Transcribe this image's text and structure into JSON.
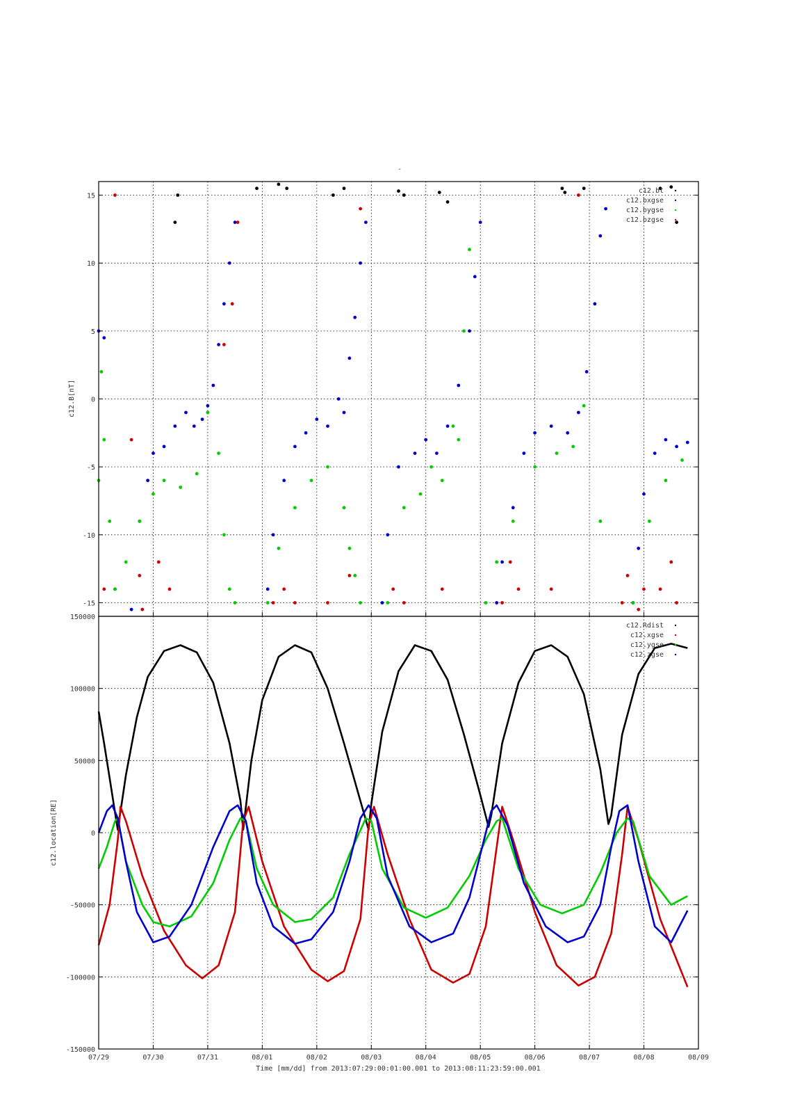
{
  "figure": {
    "top_title": "-",
    "x_axis_title": "Time [mm/dd]  from 2013:07:29:00:01:00.001  to  2013:08:11:23:59:00.001",
    "x_ticks": [
      "07/29",
      "07/30",
      "07/31",
      "08/01",
      "08/02",
      "08/03",
      "08/04",
      "08/05",
      "08/06",
      "08/07",
      "08/08",
      "08/09"
    ]
  },
  "chart_data": [
    {
      "type": "scatter",
      "ylabel": "c12.B[nT]",
      "xlabel": "",
      "x_unit": "days since 07/29",
      "xlim": [
        0,
        11
      ],
      "ylim": [
        -16,
        16
      ],
      "y_ticks": [
        "-15",
        "-10",
        "-5",
        "0",
        "5",
        "10",
        "15"
      ],
      "y_tick_values": [
        -15,
        -10,
        -5,
        0,
        5,
        10,
        15
      ],
      "grid": true,
      "legend_position": "top-right",
      "legend": [
        "c12.bt",
        "c12.bxgse",
        "c12.bygse",
        "c12.bzgse"
      ],
      "series": [
        {
          "name": "c12.bt",
          "color": "#000000",
          "x": [
            1.4,
            1.45,
            2.9,
            3.3,
            3.45,
            4.3,
            4.5,
            5.5,
            5.6,
            6.25,
            6.4,
            8.5,
            8.55,
            8.9,
            10.3,
            10.5,
            10.6
          ],
          "y": [
            13,
            15,
            15.5,
            15.8,
            15.5,
            15,
            15.5,
            15.3,
            15,
            15.2,
            14.5,
            15.5,
            15.2,
            15.5,
            15.5,
            15.6,
            13
          ]
        },
        {
          "name": "c12.bxgse",
          "color": "#0000cc",
          "x": [
            0.0,
            0.1,
            0.3,
            0.6,
            0.75,
            0.9,
            1.0,
            1.2,
            1.4,
            1.6,
            1.75,
            1.9,
            2.0,
            2.1,
            2.2,
            2.3,
            2.4,
            2.5,
            3.1,
            3.2,
            3.4,
            3.6,
            3.8,
            4.0,
            4.2,
            4.4,
            4.5,
            4.6,
            4.7,
            4.8,
            4.9,
            5.2,
            5.3,
            5.5,
            5.8,
            6.0,
            6.2,
            6.4,
            6.6,
            6.8,
            6.9,
            7.0,
            7.3,
            7.4,
            7.6,
            7.8,
            8.0,
            8.3,
            8.6,
            8.8,
            8.95,
            9.1,
            9.2,
            9.3,
            9.8,
            9.9,
            10.0,
            10.2,
            10.4,
            10.6,
            10.8
          ],
          "y": [
            5,
            4.5,
            -14,
            -15.5,
            -9,
            -6,
            -4,
            -3.5,
            -2,
            -1,
            -2,
            -1.5,
            -0.5,
            1,
            4,
            7,
            10,
            13,
            -14,
            -10,
            -6,
            -3.5,
            -2.5,
            -1.5,
            -2,
            0,
            -1,
            3,
            6,
            10,
            13,
            -15,
            -10,
            -5,
            -4,
            -3,
            -4,
            -2,
            1,
            5,
            9,
            13,
            -15,
            -12,
            -8,
            -4,
            -2.5,
            -2,
            -2.5,
            -1,
            2,
            7,
            12,
            14,
            -15,
            -11,
            -7,
            -4,
            -3,
            -3.5,
            -3.2
          ]
        },
        {
          "name": "c12.bygse",
          "color": "#00cc00",
          "x": [
            0.0,
            0.05,
            0.1,
            0.2,
            0.3,
            0.5,
            0.75,
            1.0,
            1.2,
            1.5,
            1.8,
            2.0,
            2.2,
            2.3,
            2.4,
            2.5,
            3.1,
            3.3,
            3.6,
            3.9,
            4.2,
            4.5,
            4.6,
            4.7,
            4.8,
            5.3,
            5.6,
            5.9,
            6.1,
            6.3,
            6.5,
            6.6,
            6.7,
            6.8,
            7.1,
            7.3,
            7.6,
            8.0,
            8.4,
            8.7,
            8.9,
            9.2,
            9.8,
            10.1,
            10.4,
            10.7
          ],
          "y": [
            -6,
            2,
            -3,
            -9,
            -14,
            -12,
            -9,
            -7,
            -6,
            -6.5,
            -5.5,
            -1,
            -4,
            -10,
            -14,
            -15,
            -15,
            -11,
            -8,
            -6,
            -5,
            -8,
            -11,
            -13,
            -15,
            -15,
            -8,
            -7,
            -5,
            -6,
            -2,
            -3,
            5,
            11,
            -15,
            -12,
            -9,
            -5,
            -4,
            -3.5,
            -0.5,
            -9,
            -15,
            -9,
            -6,
            -4.5
          ]
        },
        {
          "name": "c12.bzgse",
          "color": "#cc0000",
          "x": [
            0.1,
            0.3,
            0.6,
            0.75,
            0.8,
            1.1,
            1.3,
            2.3,
            2.45,
            2.55,
            3.2,
            3.4,
            3.6,
            4.2,
            4.6,
            4.8,
            5.4,
            5.6,
            6.3,
            7.4,
            7.55,
            7.7,
            8.3,
            8.8,
            9.6,
            9.7,
            9.9,
            10.0,
            10.3,
            10.5,
            10.6
          ],
          "y": [
            -14,
            15,
            -3,
            -13,
            -15.5,
            -12,
            -14,
            4,
            7,
            13,
            -15,
            -14,
            -15,
            -15,
            -13,
            14,
            -14,
            -15,
            -14,
            -15,
            -12,
            -14,
            -14,
            15,
            -15,
            -13,
            -15.5,
            -14,
            -14,
            -12,
            -15
          ]
        }
      ]
    },
    {
      "type": "line",
      "ylabel": "c12.location[RE]",
      "xlabel": "Time [mm/dd]  from 2013:07:29:00:01:00.001  to  2013:08:11:23:59:00.001",
      "x_unit": "days since 07/29",
      "xlim": [
        0,
        11
      ],
      "ylim": [
        -150000,
        150000
      ],
      "y_ticks": [
        "-150000",
        "-100000",
        "-50000",
        "0",
        "50000",
        "100000",
        "150000"
      ],
      "y_tick_values": [
        -150000,
        -100000,
        -50000,
        0,
        50000,
        100000,
        150000
      ],
      "grid": true,
      "legend_position": "top-right",
      "legend": [
        "c12.Rdist",
        "c12.xgse",
        "c12.ygse",
        "c12.zgse"
      ],
      "series": [
        {
          "name": "c12.Rdist",
          "color": "#000000",
          "x": [
            0.0,
            0.1,
            0.2,
            0.3,
            0.35,
            0.5,
            0.7,
            0.9,
            1.2,
            1.5,
            1.8,
            2.1,
            2.4,
            2.6,
            2.65,
            2.8,
            3.0,
            3.3,
            3.6,
            3.9,
            4.2,
            4.5,
            4.8,
            4.95,
            5.0,
            5.2,
            5.5,
            5.8,
            6.1,
            6.4,
            6.7,
            7.0,
            7.15,
            7.2,
            7.4,
            7.7,
            8.0,
            8.3,
            8.6,
            8.9,
            9.2,
            9.35,
            9.4,
            9.6,
            9.9,
            10.2,
            10.5,
            10.8
          ],
          "y": [
            84000,
            62000,
            38000,
            14000,
            2000,
            40000,
            80000,
            108000,
            126000,
            130000,
            125000,
            104000,
            62000,
            22000,
            2000,
            50000,
            92000,
            122000,
            130000,
            125000,
            100000,
            62000,
            22000,
            2000,
            20000,
            70000,
            112000,
            130000,
            126000,
            106000,
            68000,
            26000,
            4000,
            12000,
            62000,
            104000,
            126000,
            130000,
            122000,
            96000,
            44000,
            6000,
            12000,
            68000,
            110000,
            128000,
            131000,
            128000
          ]
        },
        {
          "name": "c12.xgse",
          "color": "#cc0000",
          "x": [
            0.0,
            0.2,
            0.35,
            0.4,
            0.5,
            0.8,
            1.2,
            1.6,
            1.9,
            2.2,
            2.5,
            2.65,
            2.75,
            3.0,
            3.4,
            3.9,
            4.2,
            4.5,
            4.8,
            4.95,
            5.05,
            5.3,
            5.7,
            6.1,
            6.5,
            6.8,
            7.1,
            7.3,
            7.4,
            7.6,
            8.0,
            8.4,
            8.8,
            9.1,
            9.4,
            9.6,
            9.7,
            9.9,
            10.3,
            10.8
          ],
          "y": [
            -78000,
            -50000,
            -5000,
            18000,
            8000,
            -30000,
            -68000,
            -92000,
            -101000,
            -92000,
            -55000,
            8000,
            18000,
            -20000,
            -65000,
            -95000,
            -103000,
            -96000,
            -60000,
            5000,
            18000,
            -15000,
            -60000,
            -95000,
            -104000,
            -98000,
            -65000,
            -10000,
            18000,
            -5000,
            -55000,
            -92000,
            -106000,
            -100000,
            -70000,
            -15000,
            18000,
            -5000,
            -60000,
            -107000
          ]
        },
        {
          "name": "c12.ygse",
          "color": "#00cc00",
          "x": [
            0.0,
            0.15,
            0.3,
            0.35,
            0.5,
            0.8,
            1.0,
            1.3,
            1.7,
            2.1,
            2.4,
            2.6,
            2.7,
            2.9,
            3.2,
            3.6,
            3.9,
            4.3,
            4.6,
            4.9,
            5.0,
            5.2,
            5.6,
            6.0,
            6.4,
            6.8,
            7.1,
            7.3,
            7.4,
            7.7,
            8.1,
            8.5,
            8.9,
            9.2,
            9.5,
            9.7,
            9.8,
            10.1,
            10.5,
            10.8
          ],
          "y": [
            -25000,
            -10000,
            8000,
            10000,
            -20000,
            -50000,
            -62000,
            -65000,
            -58000,
            -35000,
            -5000,
            10000,
            8000,
            -25000,
            -50000,
            -62000,
            -60000,
            -45000,
            -15000,
            10000,
            8000,
            -25000,
            -52000,
            -59000,
            -52000,
            -30000,
            -5000,
            8000,
            10000,
            -25000,
            -50000,
            -56000,
            -50000,
            -28000,
            0,
            10000,
            8000,
            -30000,
            -50000,
            -44000
          ]
        },
        {
          "name": "c12.zgse",
          "color": "#0000cc",
          "x": [
            0.0,
            0.15,
            0.25,
            0.35,
            0.5,
            0.7,
            1.0,
            1.3,
            1.7,
            2.1,
            2.4,
            2.55,
            2.7,
            2.9,
            3.2,
            3.6,
            3.9,
            4.3,
            4.6,
            4.8,
            4.95,
            5.1,
            5.3,
            5.7,
            6.1,
            6.5,
            6.8,
            7.0,
            7.2,
            7.3,
            7.5,
            7.8,
            8.2,
            8.6,
            8.9,
            9.2,
            9.4,
            9.55,
            9.7,
            9.9,
            10.2,
            10.5,
            10.8
          ],
          "y": [
            0,
            15000,
            19000,
            10000,
            -20000,
            -55000,
            -76000,
            -72000,
            -50000,
            -10000,
            15000,
            19000,
            8000,
            -35000,
            -65000,
            -77000,
            -74000,
            -55000,
            -20000,
            10000,
            19000,
            10000,
            -30000,
            -65000,
            -76000,
            -70000,
            -45000,
            -15000,
            15000,
            19000,
            5000,
            -35000,
            -65000,
            -76000,
            -72000,
            -50000,
            -10000,
            15000,
            19000,
            -20000,
            -65000,
            -76000,
            -54000
          ]
        }
      ]
    }
  ]
}
